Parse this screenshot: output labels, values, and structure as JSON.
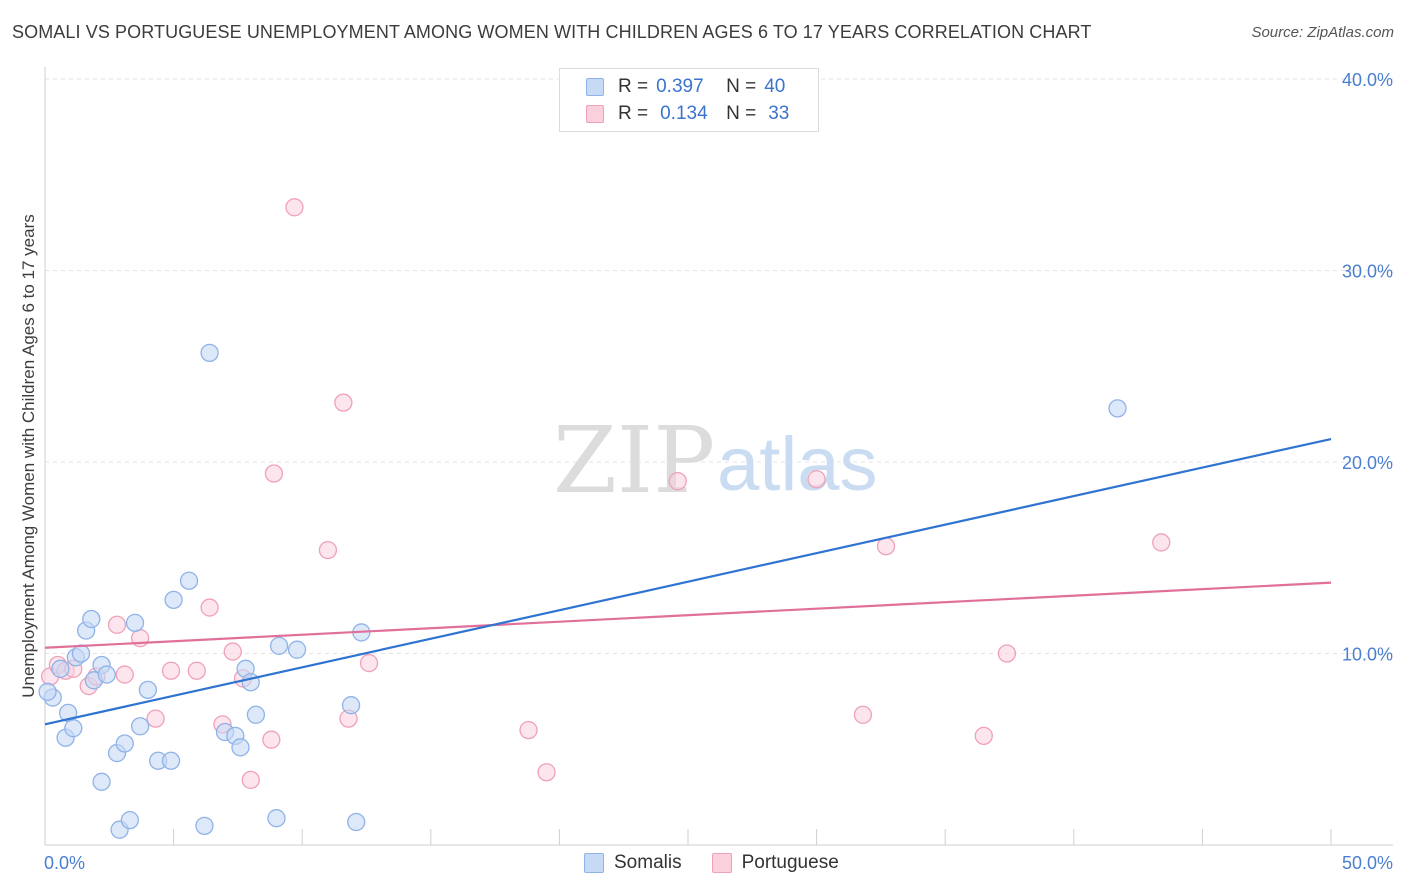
{
  "title": "SOMALI VS PORTUGUESE UNEMPLOYMENT AMONG WOMEN WITH CHILDREN AGES 6 TO 17 YEARS CORRELATION CHART",
  "source": "Source: ZipAtlas.com",
  "watermark": {
    "zip": "ZIP",
    "atlas": "atlas"
  },
  "legend": {
    "r_label": "R =",
    "n_label": "N =",
    "somali": {
      "r": "0.397",
      "n": "40"
    },
    "portuguese": {
      "r": "0.134",
      "n": "33"
    }
  },
  "bottom_legend": {
    "somali": "Somalis",
    "portuguese": "Portuguese"
  },
  "colors": {
    "somali_fill": "#c6d9f5",
    "somali_stroke": "#8fb3e8",
    "somali_line": "#2f74d0",
    "portuguese_fill": "#f9d0dc",
    "portuguese_stroke": "#efa1b8",
    "portuguese_line": "#e0709a",
    "axis_text": "#4a7fd0"
  },
  "chart_data": {
    "type": "scatter",
    "title": "SOMALI VS PORTUGUESE UNEMPLOYMENT AMONG WOMEN WITH CHILDREN AGES 6 TO 17 YEARS CORRELATION CHART",
    "xlabel": "",
    "ylabel": "Unemployment Among Women with Children Ages 6 to 17 years",
    "xlim": [
      0,
      50
    ],
    "ylim": [
      0,
      40
    ],
    "x_tick_labels": [
      "0.0%",
      "50.0%"
    ],
    "y_ticks": [
      10,
      20,
      30,
      40
    ],
    "y_tick_labels": [
      "10.0%",
      "20.0%",
      "30.0%",
      "40.0%"
    ],
    "series": [
      {
        "name": "Somalis",
        "trend": {
          "x": [
            0,
            50
          ],
          "y": [
            6.3,
            21.2
          ]
        },
        "points": [
          [
            0.3,
            7.7
          ],
          [
            0.6,
            9.2
          ],
          [
            0.8,
            5.6
          ],
          [
            0.9,
            6.9
          ],
          [
            1.1,
            6.1
          ],
          [
            1.2,
            9.8
          ],
          [
            1.4,
            10.0
          ],
          [
            1.6,
            11.2
          ],
          [
            1.8,
            11.8
          ],
          [
            1.9,
            8.6
          ],
          [
            2.2,
            9.4
          ],
          [
            2.4,
            8.9
          ],
          [
            2.8,
            4.8
          ],
          [
            3.1,
            5.3
          ],
          [
            2.2,
            3.3
          ],
          [
            2.9,
            0.8
          ],
          [
            3.3,
            1.3
          ],
          [
            3.5,
            11.6
          ],
          [
            3.7,
            6.2
          ],
          [
            4.0,
            8.1
          ],
          [
            4.4,
            4.4
          ],
          [
            4.9,
            4.4
          ],
          [
            5.0,
            12.8
          ],
          [
            5.6,
            13.8
          ],
          [
            6.2,
            1.0
          ],
          [
            6.4,
            25.7
          ],
          [
            7.0,
            5.9
          ],
          [
            7.4,
            5.7
          ],
          [
            7.6,
            5.1
          ],
          [
            7.8,
            9.2
          ],
          [
            8.0,
            8.5
          ],
          [
            8.2,
            6.8
          ],
          [
            9.0,
            1.4
          ],
          [
            9.1,
            10.4
          ],
          [
            9.8,
            10.2
          ],
          [
            11.9,
            7.3
          ],
          [
            12.1,
            1.2
          ],
          [
            12.3,
            11.1
          ],
          [
            41.7,
            22.8
          ],
          [
            0.1,
            8.0
          ]
        ]
      },
      {
        "name": "Portuguese",
        "trend": {
          "x": [
            0,
            50
          ],
          "y": [
            10.3,
            13.7
          ]
        },
        "points": [
          [
            0.2,
            8.8
          ],
          [
            0.5,
            9.4
          ],
          [
            0.8,
            9.1
          ],
          [
            1.1,
            9.2
          ],
          [
            1.7,
            8.3
          ],
          [
            2.0,
            8.8
          ],
          [
            2.8,
            11.5
          ],
          [
            3.1,
            8.9
          ],
          [
            3.7,
            10.8
          ],
          [
            4.3,
            6.6
          ],
          [
            4.9,
            9.1
          ],
          [
            5.9,
            9.1
          ],
          [
            6.4,
            12.4
          ],
          [
            6.9,
            6.3
          ],
          [
            7.3,
            10.1
          ],
          [
            7.7,
            8.7
          ],
          [
            8.0,
            3.4
          ],
          [
            8.8,
            5.5
          ],
          [
            8.9,
            19.4
          ],
          [
            9.7,
            33.3
          ],
          [
            11.0,
            15.4
          ],
          [
            11.6,
            23.1
          ],
          [
            11.8,
            6.6
          ],
          [
            12.6,
            9.5
          ],
          [
            18.8,
            6.0
          ],
          [
            19.5,
            3.8
          ],
          [
            24.6,
            19.0
          ],
          [
            30.0,
            19.1
          ],
          [
            31.8,
            6.8
          ],
          [
            32.7,
            15.6
          ],
          [
            36.5,
            5.7
          ],
          [
            37.4,
            10.0
          ],
          [
            43.4,
            15.8
          ]
        ]
      }
    ]
  }
}
